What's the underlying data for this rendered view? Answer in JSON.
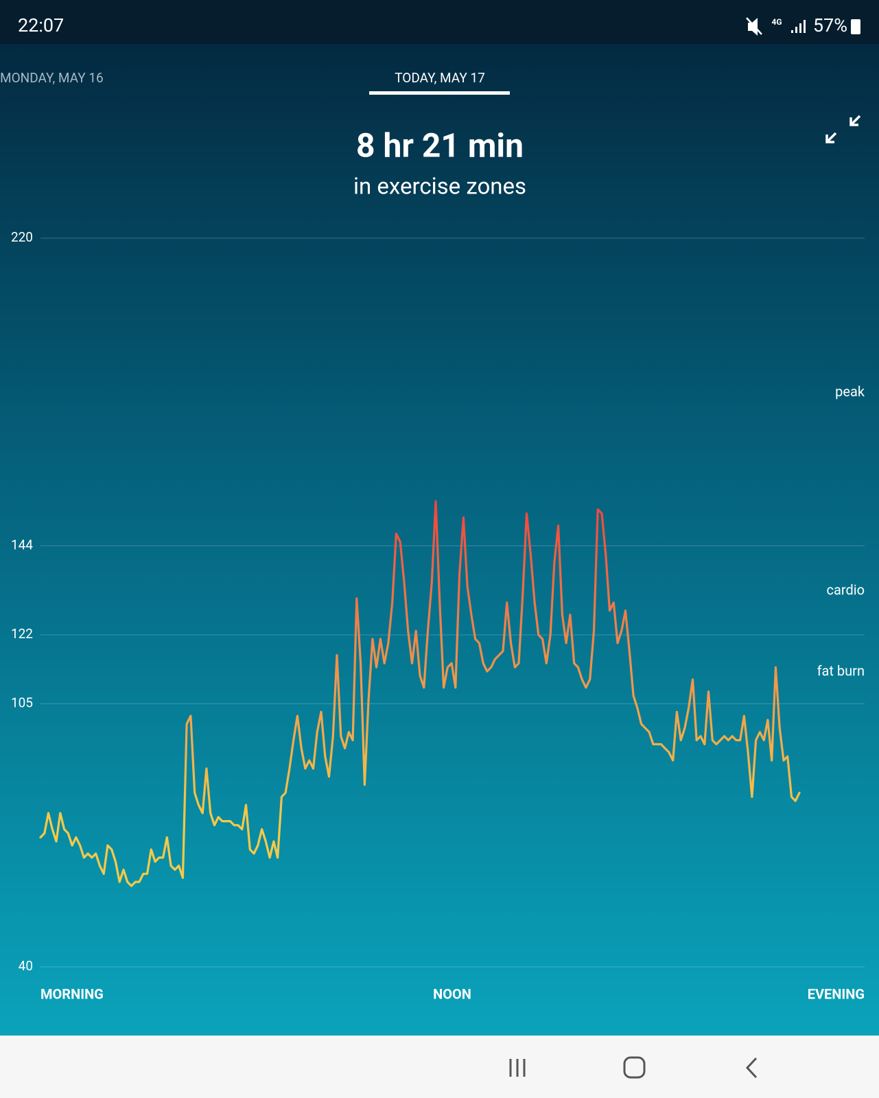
{
  "status_bar": {
    "time": "22:07",
    "network": "4G",
    "battery": "57%"
  },
  "tabs": [
    "MONDAY, MAY 16",
    "TODAY, MAY 17"
  ],
  "summary": {
    "value": "8 hr 21 min",
    "caption": "in exercise zones"
  },
  "chart_data": {
    "type": "line",
    "colors": [
      "#f7c948",
      "#f0884a",
      "#f23f3c"
    ],
    "ylim": [
      40,
      220
    ],
    "yticks": [
      40,
      105,
      122,
      144,
      220
    ],
    "grid": true,
    "zones": [
      "peak",
      "cardio",
      "fat burn"
    ],
    "x_labels": [
      "MORNING",
      "NOON",
      "EVENING"
    ],
    "values": [
      72,
      73,
      78,
      74,
      71,
      78,
      74,
      73,
      70,
      72,
      70,
      67,
      68,
      67,
      68,
      65,
      63,
      70,
      69,
      66,
      61,
      64,
      61,
      60,
      61,
      61,
      63,
      63,
      69,
      66,
      67,
      67,
      72,
      65,
      64,
      65,
      62,
      100,
      102,
      83,
      80,
      78,
      89,
      78,
      75,
      77,
      76,
      76,
      76,
      75,
      75,
      74,
      80,
      69,
      68,
      70,
      74,
      71,
      67,
      71,
      67,
      82,
      83,
      89,
      96,
      102,
      94,
      89,
      91,
      89,
      98,
      103,
      92,
      87,
      97,
      117,
      97,
      94,
      98,
      96,
      131,
      115,
      85,
      106,
      121,
      114,
      121,
      115,
      120,
      130,
      147,
      145,
      135,
      123,
      115,
      123,
      112,
      109,
      123,
      135,
      155,
      130,
      109,
      114,
      115,
      109,
      137,
      151,
      134,
      127,
      121,
      120,
      115,
      113,
      114,
      116,
      117,
      118,
      130,
      120,
      114,
      115,
      132,
      152,
      142,
      130,
      122,
      121,
      115,
      122,
      140,
      149,
      127,
      120,
      127,
      115,
      114,
      111,
      109,
      111,
      123,
      153,
      152,
      142,
      128,
      130,
      120,
      123,
      128,
      118,
      107,
      104,
      100,
      99,
      98,
      95,
      95,
      95,
      94,
      93,
      91,
      103,
      96,
      99,
      104,
      111,
      96,
      97,
      95,
      108,
      96,
      95,
      96,
      97,
      96,
      97,
      96,
      96,
      102,
      93,
      82,
      96,
      98,
      96,
      101,
      91,
      114,
      99,
      91,
      92,
      82,
      81,
      83
    ]
  }
}
